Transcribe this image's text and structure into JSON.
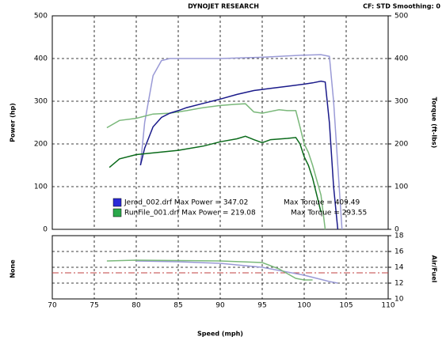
{
  "header": {
    "title": "DYNOJET RESEARCH",
    "settings": "CF: STD  Smoothing: 0"
  },
  "legend": [
    {
      "file_power": "Jerod_002.drf Max Power = 347.02",
      "torque": "Max Torque = 409.49",
      "color": "#2a2ad8"
    },
    {
      "file_power": "RunFile_001.drf Max Power = 219.08",
      "torque": "Max Torque = 293.55",
      "color": "#2aa84a"
    }
  ],
  "chart_data": [
    {
      "type": "line",
      "ylabel": "Power (hp)",
      "y2label": "Torque (ft-lbs)",
      "xlim": [
        70,
        110
      ],
      "xticks": [
        70,
        75,
        80,
        85,
        90,
        95,
        100,
        105,
        110
      ],
      "ylim": [
        0,
        500
      ],
      "yticks": [
        0,
        100,
        200,
        300,
        400,
        500
      ],
      "y2lim": [
        0,
        500
      ],
      "y2ticks": [
        0,
        100,
        200,
        300,
        400,
        500
      ],
      "grid": true,
      "series": [
        {
          "color": "#9a9ad6",
          "axis": "y2",
          "x": [
            80.5,
            81,
            82,
            83,
            84,
            86,
            90,
            95,
            100,
            102,
            103,
            103.5,
            104,
            104.5
          ],
          "values": [
            150,
            250,
            360,
            395,
            400,
            400,
            400,
            403,
            408,
            409,
            405,
            300,
            150,
            0
          ]
        },
        {
          "color": "#7ab87a",
          "axis": "y2",
          "x": [
            76.5,
            78,
            80,
            82,
            84,
            86,
            88,
            90,
            92,
            93,
            94,
            95,
            97,
            98,
            99,
            99.5,
            100,
            100.5,
            101,
            102,
            102.5
          ],
          "values": [
            238,
            255,
            260,
            270,
            272,
            278,
            285,
            290,
            293,
            294,
            275,
            272,
            280,
            278,
            278,
            240,
            200,
            180,
            150,
            80,
            0
          ]
        },
        {
          "color": "#1a1a8a",
          "x": [
            80.5,
            81,
            82,
            83,
            84,
            85,
            86,
            88,
            90,
            92,
            94,
            96,
            98,
            100,
            101,
            102,
            102.5,
            103,
            103.5,
            104
          ],
          "values": [
            150,
            190,
            240,
            262,
            272,
            278,
            285,
            295,
            305,
            316,
            325,
            330,
            335,
            340,
            343,
            347,
            345,
            250,
            100,
            0
          ]
        },
        {
          "color": "#0a6a1a",
          "x": [
            76.8,
            78,
            80,
            85,
            88,
            90,
            92,
            93,
            94,
            95,
            96,
            98,
            99,
            99.5,
            100,
            100.5,
            101,
            101.5,
            102
          ],
          "values": [
            145,
            165,
            175,
            185,
            195,
            205,
            212,
            218,
            210,
            203,
            210,
            213,
            215,
            200,
            170,
            150,
            120,
            80,
            40
          ]
        }
      ]
    },
    {
      "type": "line",
      "ylabel": "None",
      "y2label": "Air/Fuel",
      "xlabel": "Speed (mph)",
      "xlim": [
        70,
        110
      ],
      "xticks": [
        70,
        75,
        80,
        85,
        90,
        95,
        100,
        105,
        110
      ],
      "y2lim": [
        10,
        18
      ],
      "y2ticks": [
        10,
        12,
        14,
        16,
        18
      ],
      "grid": true,
      "reference": 13.3,
      "reference_color": "#c04040",
      "series": [
        {
          "color": "#9a9ad6",
          "axis": "y2",
          "x": [
            80,
            85,
            90,
            95,
            100,
            103,
            104
          ],
          "values": [
            14.8,
            14.7,
            14.5,
            14.0,
            13.0,
            12.2,
            12.0
          ]
        },
        {
          "color": "#7ab87a",
          "axis": "y2",
          "x": [
            76.5,
            80,
            90,
            95,
            97,
            99,
            100,
            101
          ],
          "values": [
            14.8,
            14.9,
            14.8,
            14.6,
            13.8,
            12.6,
            12.4,
            12.4
          ]
        }
      ]
    }
  ]
}
